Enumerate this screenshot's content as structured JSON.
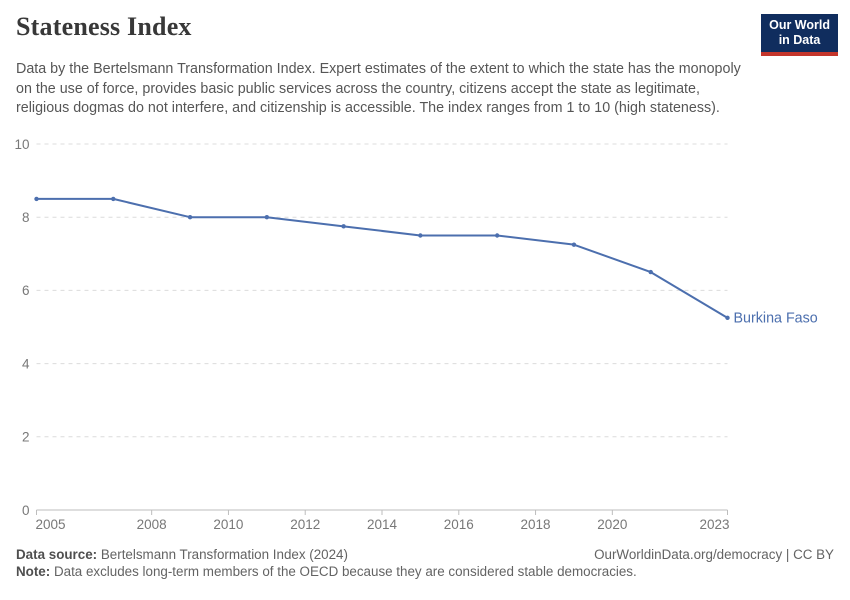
{
  "header": {
    "title": "Stateness Index",
    "subtitle": "Data by the Bertelsmann Transformation Index. Expert estimates of the extent to which the state has the monopoly on the use of force, provides basic public services across the country, citizens accept the state as legitimate, religious dogmas do not interfere, and citizenship is accessible. The index ranges from 1 to 10 (high stateness).",
    "logo": {
      "line1": "Our World",
      "line2": "in Data"
    }
  },
  "chart_data": {
    "type": "line",
    "title": "Stateness Index",
    "xlabel": "",
    "ylabel": "",
    "xlim": [
      2005,
      2023
    ],
    "ylim": [
      0,
      10
    ],
    "xticks": [
      2005,
      2008,
      2010,
      2012,
      2014,
      2016,
      2018,
      2020,
      2023
    ],
    "yticks": [
      0,
      2,
      4,
      6,
      8,
      10
    ],
    "grid": "horizontal-dashed",
    "legend_position": "end-of-line-label",
    "x": [
      2005,
      2007,
      2009,
      2011,
      2013,
      2015,
      2017,
      2019,
      2021,
      2023
    ],
    "series": [
      {
        "name": "Burkina Faso",
        "end_label": "Burkina Faso",
        "color": "#4c6fae",
        "values": [
          8.5,
          8.5,
          8.0,
          8.0,
          7.75,
          7.5,
          7.5,
          7.25,
          6.5,
          5.25
        ]
      }
    ]
  },
  "footer": {
    "source_label": "Data source:",
    "source_text": "Bertelsmann Transformation Index (2024)",
    "attribution": "OurWorldinData.org/democracy | CC BY",
    "note_label": "Note:",
    "note_text": "Data excludes long-term members of the OECD because they are considered stable democracies."
  },
  "colors": {
    "line": "#4c6fae",
    "logo_bg": "#102d5e",
    "logo_accent": "#c4352b",
    "grid": "#dcdcdc",
    "axis": "#bdbdbd",
    "tick_label": "#787878",
    "title_text": "#383838",
    "subtitle_text": "#565656",
    "footer_text": "#636363"
  }
}
